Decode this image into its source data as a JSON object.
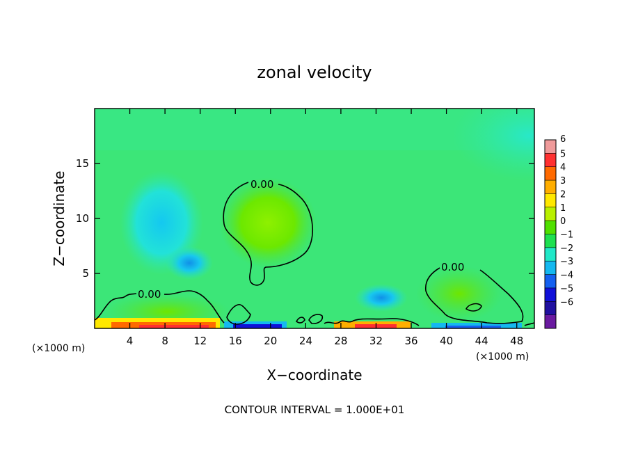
{
  "chart_data": {
    "type": "heatmap",
    "title": "zonal velocity",
    "xlabel": "X−coordinate",
    "ylabel": "Z−coordinate",
    "x_unit_left": "(×1000 m)",
    "x_unit_right": "(×1000 m)",
    "xlim": [
      0,
      50
    ],
    "ylim": [
      0,
      20
    ],
    "x_ticks": [
      4,
      8,
      12,
      16,
      20,
      24,
      28,
      32,
      36,
      40,
      44,
      48
    ],
    "y_ticks": [
      5,
      10,
      15
    ],
    "footer": "CONTOUR INTERVAL = 1.000E+01",
    "contour_level_label": "0.00",
    "colorbar": {
      "labels": [
        "6",
        "5",
        "4",
        "3",
        "2",
        "1",
        "0",
        "−1",
        "−2",
        "−3",
        "−4",
        "−5",
        "−6"
      ],
      "colors": [
        "#ef9a9a",
        "#ff3030",
        "#ff6a00",
        "#ffae00",
        "#ffe800",
        "#b9f000",
        "#50e000",
        "#1ee050",
        "#20e8c8",
        "#14b8f0",
        "#1460f0",
        "#1010d8",
        "#2010a0",
        "#6a1aa0"
      ]
    },
    "background_level": "#38e877",
    "features": [
      {
        "kind": "positive",
        "x": 18.5,
        "z": 10,
        "peak": 1.0
      },
      {
        "kind": "negative",
        "x": 9,
        "z": 10,
        "peak": -2.0
      },
      {
        "kind": "negative",
        "x": 10.5,
        "z": 6,
        "peak": -2.6
      },
      {
        "kind": "negative",
        "x": 33,
        "z": 2.7,
        "peak": -2.4
      },
      {
        "kind": "positive",
        "x": 41,
        "z": 4,
        "peak": 0.6
      },
      {
        "kind": "negative",
        "x": 47,
        "z": 17,
        "peak": -1.6
      },
      {
        "kind": "positive",
        "x": 8,
        "z": 1.5,
        "peak": 0.8
      },
      {
        "kind": "positive-surface",
        "x": 8,
        "z": 0.1,
        "peak": 5.5
      },
      {
        "kind": "negative-surface",
        "x": 18,
        "z": 0.1,
        "peak": -4.0
      },
      {
        "kind": "positive-surface",
        "x": 31,
        "z": 0.1,
        "peak": 4.0
      },
      {
        "kind": "negative-surface",
        "x": 42,
        "z": 0.1,
        "peak": -3.0
      }
    ]
  }
}
